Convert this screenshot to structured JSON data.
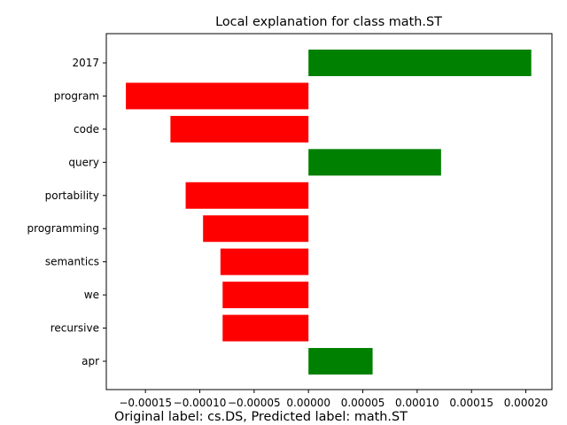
{
  "chart_data": {
    "type": "bar",
    "orientation": "horizontal",
    "title": "Local explanation for class math.ST",
    "caption": "Original label: cs.DS, Predicted label: math.ST",
    "categories": [
      "2017",
      "program",
      "code",
      "query",
      "portability",
      "programming",
      "semantics",
      "we",
      "recursive",
      "apr"
    ],
    "values": [
      0.000205,
      -0.000168,
      -0.000127,
      0.000122,
      -0.000113,
      -9.7e-05,
      -8.1e-05,
      -7.9e-05,
      -7.9e-05,
      5.9e-05
    ],
    "xlim": [
      -0.000186,
      0.000224
    ],
    "xticks": [
      -0.00015,
      -0.0001,
      -5e-05,
      0.0,
      5e-05,
      0.0001,
      0.00015,
      0.0002
    ],
    "xtick_labels": [
      "−0.00015",
      "−0.00010",
      "−0.00005",
      "0.00000",
      "0.00005",
      "0.00010",
      "0.00015",
      "0.00020"
    ],
    "xlabel": "",
    "ylabel": "",
    "grid": false,
    "colors": {
      "positive": "#008000",
      "negative": "#ff0000"
    }
  }
}
